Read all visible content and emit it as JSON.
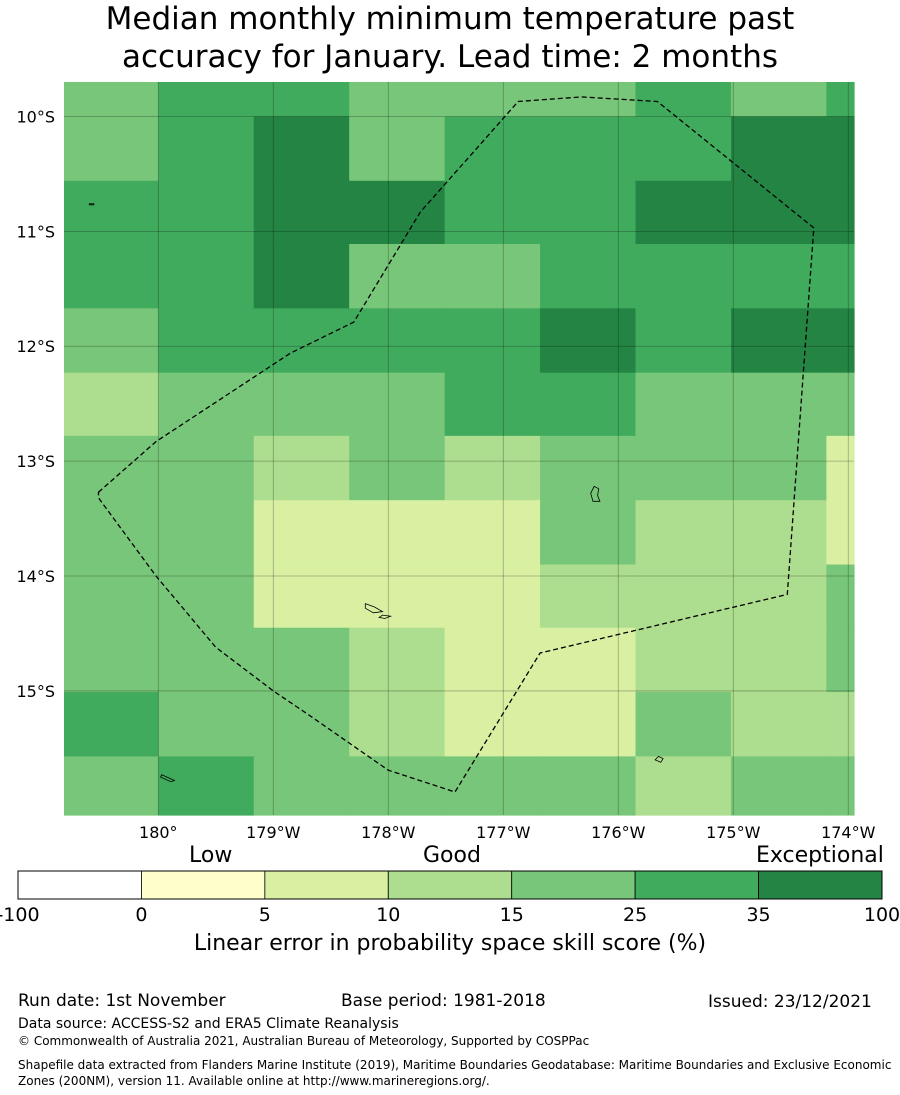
{
  "title_lines": [
    "Median monthly minimum temperature past",
    "accuracy for January. Lead time: 2 months"
  ],
  "map": {
    "lat_labels": [
      "10°S",
      "11°S",
      "12°S",
      "13°S",
      "14°S",
      "15°S"
    ],
    "lon_labels": [
      "180°",
      "179°W",
      "178°W",
      "177°W",
      "176°W",
      "175°W",
      "174°W"
    ],
    "lon_range": [
      -180.82,
      -173.95
    ],
    "lat_range": [
      -9.7,
      -16.08
    ],
    "grid_lon_edges": [
      -180.82,
      -180.0,
      -179.17,
      -178.34,
      -177.51,
      -176.68,
      -175.85,
      -175.02,
      -174.19,
      -173.95
    ],
    "grid_lat_edges": [
      -9.7,
      -10.0,
      -10.56,
      -11.11,
      -11.67,
      -12.23,
      -12.78,
      -13.34,
      -13.9,
      -14.45,
      -15.01,
      -15.57,
      -16.08
    ],
    "cell_classes": [
      [
        4,
        5,
        5,
        4,
        4,
        4,
        5,
        4,
        5
      ],
      [
        4,
        5,
        6,
        4,
        5,
        5,
        5,
        6,
        6
      ],
      [
        5,
        5,
        6,
        6,
        5,
        5,
        6,
        6,
        6
      ],
      [
        5,
        5,
        6,
        4,
        4,
        5,
        5,
        5,
        5
      ],
      [
        4,
        5,
        5,
        5,
        5,
        6,
        5,
        6,
        6
      ],
      [
        3,
        4,
        4,
        4,
        5,
        5,
        4,
        4,
        4
      ],
      [
        4,
        4,
        3,
        4,
        3,
        4,
        4,
        4,
        2
      ],
      [
        4,
        4,
        2,
        2,
        2,
        4,
        3,
        3,
        2
      ],
      [
        4,
        4,
        2,
        2,
        2,
        3,
        3,
        3,
        4
      ],
      [
        4,
        4,
        4,
        3,
        2,
        2,
        3,
        3,
        4
      ],
      [
        5,
        4,
        4,
        3,
        2,
        2,
        4,
        3,
        3
      ],
      [
        4,
        5,
        4,
        4,
        4,
        4,
        3,
        4,
        4
      ]
    ],
    "eez_boundary": [
      [
        -180.52,
        -13.27
      ],
      [
        -180.02,
        -12.83
      ],
      [
        -178.85,
        -12.06
      ],
      [
        -178.3,
        -11.79
      ],
      [
        -177.72,
        -10.83
      ],
      [
        -176.87,
        -9.87
      ],
      [
        -176.32,
        -9.83
      ],
      [
        -175.66,
        -9.87
      ],
      [
        -174.3,
        -10.97
      ],
      [
        -174.53,
        -14.16
      ],
      [
        -176.68,
        -14.67
      ],
      [
        -177.42,
        -15.88
      ],
      [
        -178.0,
        -15.69
      ],
      [
        -178.69,
        -15.21
      ],
      [
        -179.0,
        -15.0
      ],
      [
        -179.5,
        -14.62
      ],
      [
        -180.02,
        -14.0
      ],
      [
        -180.52,
        -13.32
      ]
    ],
    "islands": [
      [
        [
          -176.21,
          -13.22
        ],
        [
          -176.17,
          -13.24
        ],
        [
          -176.18,
          -13.3
        ],
        [
          -176.16,
          -13.35
        ],
        [
          -176.22,
          -13.35
        ],
        [
          -176.24,
          -13.28
        ]
      ],
      [
        [
          -178.2,
          -14.24
        ],
        [
          -178.12,
          -14.27
        ],
        [
          -178.05,
          -14.31
        ],
        [
          -178.13,
          -14.32
        ],
        [
          -178.2,
          -14.28
        ]
      ],
      [
        [
          -178.05,
          -14.34
        ],
        [
          -177.98,
          -14.35
        ],
        [
          -178.03,
          -14.37
        ],
        [
          -178.08,
          -14.36
        ]
      ],
      [
        [
          -175.65,
          -15.57
        ],
        [
          -175.61,
          -15.59
        ],
        [
          -175.63,
          -15.62
        ],
        [
          -175.68,
          -15.6
        ]
      ],
      [
        [
          -179.97,
          -15.73
        ],
        [
          -179.86,
          -15.78
        ],
        [
          -179.89,
          -15.79
        ],
        [
          -179.98,
          -15.75
        ]
      ],
      [
        [
          -180.6,
          -10.76
        ],
        [
          -180.56,
          -10.76
        ],
        [
          -180.56,
          -10.77
        ],
        [
          -180.6,
          -10.77
        ]
      ]
    ]
  },
  "colorbar": {
    "labels": [
      "-100",
      "0",
      "5",
      "10",
      "15",
      "25",
      "35",
      "100"
    ],
    "colors": [
      "#ffffff",
      "#ffffcc",
      "#d9f0a3",
      "#addd8e",
      "#78c679",
      "#41ab5d",
      "#238443"
    ],
    "category_words": [
      "Low",
      "Good",
      "Exceptional"
    ],
    "axis_label": "Linear error in probability space skill score (%)"
  },
  "footer": {
    "run_date": "Run date: 1st November",
    "base_period": "Base period: 1981-2018",
    "issued": "Issued: 23/12/2021",
    "data_source": "Data source: ACCESS-S2 and ERA5 Climate Reanalysis",
    "copyright": "© Commonwealth of Australia 2021, Australian Bureau of Meteorology, Supported by COSPPac",
    "shapefile": "Shapefile data extracted from Flanders Marine Institute (2019), Maritime Boundaries Geodatabase: Maritime Boundaries and Exclusive Economic Zones (200NM), version 11. Available online at http://www.marineregions.org/."
  }
}
